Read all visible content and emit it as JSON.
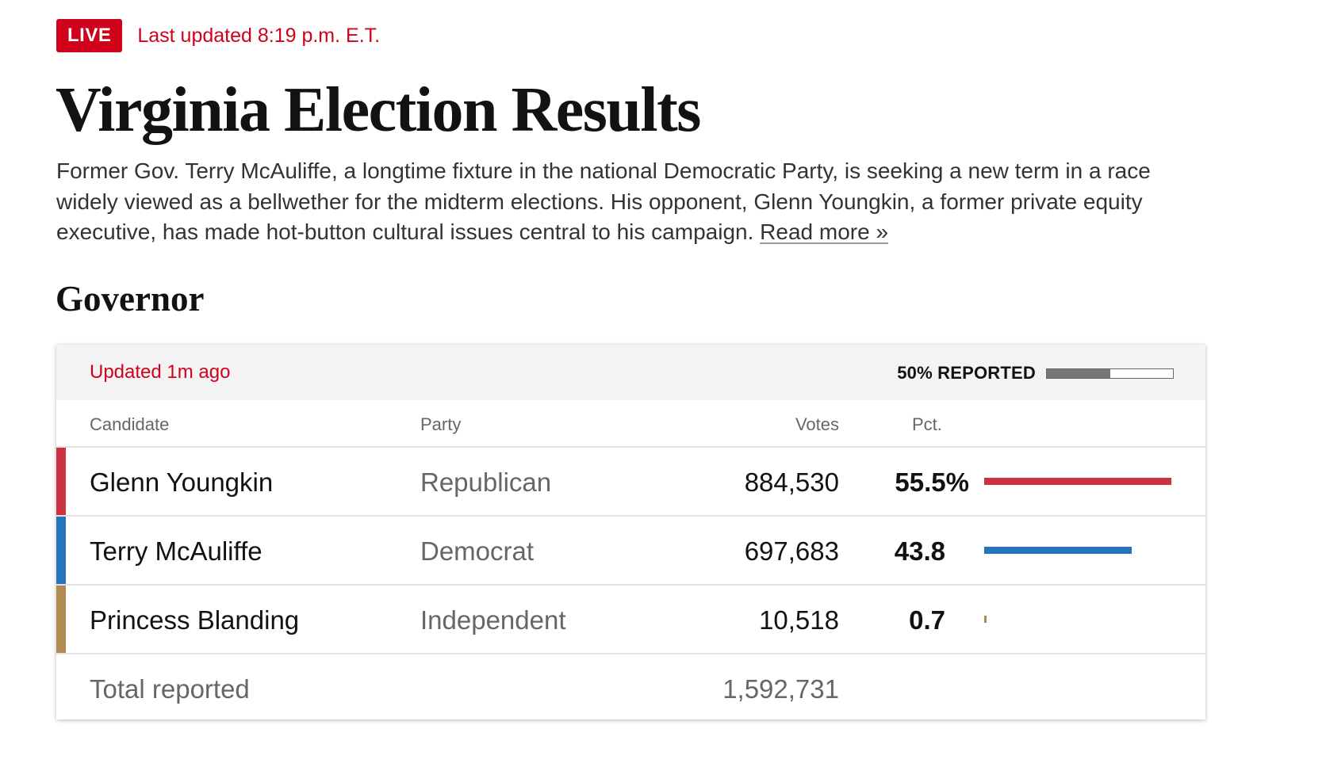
{
  "header": {
    "live_badge": "LIVE",
    "last_updated": "Last updated 8:19 p.m. E.T."
  },
  "headline": "Virginia Election Results",
  "intro": {
    "text": "Former Gov. Terry McAuliffe, a longtime fixture in the national Democratic Party, is seeking a new term in a race widely viewed as a bellwether for the midterm elections. His opponent, Glenn Youngkin, a former private equity executive, has made hot-button cultural issues central to his campaign.",
    "read_more": "Read more »"
  },
  "race": {
    "title": "Governor",
    "updated": "Updated 1m ago",
    "reported_label": "50% REPORTED",
    "reported_fraction": 0.5,
    "columns": {
      "candidate": "Candidate",
      "party": "Party",
      "votes": "Votes",
      "pct": "Pct."
    },
    "candidates": [
      {
        "name": "Glenn Youngkin",
        "party": "Republican",
        "votes": "884,530",
        "pct": "55.5%",
        "pct_value": 55.5,
        "color": "#cc3340"
      },
      {
        "name": "Terry McAuliffe",
        "party": "Democrat",
        "votes": "697,683",
        "pct": "43.8",
        "pct_value": 43.8,
        "color": "#2576b8"
      },
      {
        "name": "Princess Blanding",
        "party": "Independent",
        "votes": "10,518",
        "pct": "0.7",
        "pct_value": 0.7,
        "color": "#b18b52"
      }
    ],
    "total": {
      "label": "Total reported",
      "votes": "1,592,731"
    }
  }
}
